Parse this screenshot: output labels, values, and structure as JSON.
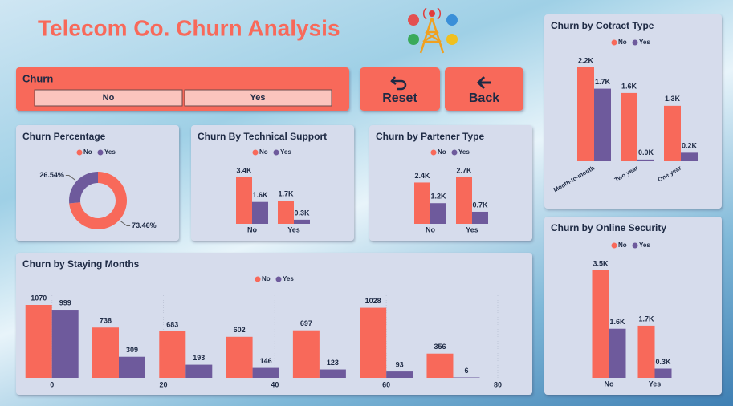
{
  "header": {
    "title": "Telecom Co. Churn Analysis"
  },
  "slicer": {
    "title": "Churn",
    "options": [
      "No",
      "Yes"
    ]
  },
  "buttons": [
    {
      "label": "Reset"
    },
    {
      "label": "Back"
    }
  ],
  "chart_data": [
    {
      "type": "pie",
      "title": "Churn Percentage",
      "categories": [
        "No",
        "Yes"
      ],
      "colors": [
        "#f8695a",
        "#6e5a9c"
      ],
      "values": [
        73.46,
        26.54
      ],
      "value_labels": [
        "73.46%",
        "26.54%"
      ]
    },
    {
      "type": "bar",
      "title": "Churn By Technical Support",
      "categories": [
        "No",
        "Yes"
      ],
      "series": [
        {
          "name": "No",
          "color": "#f8695a",
          "values": [
            3400,
            1700
          ],
          "value_labels": [
            "3.4K",
            "1.7K"
          ]
        },
        {
          "name": "Yes",
          "color": "#6e5a9c",
          "values": [
            1600,
            300
          ],
          "value_labels": [
            "1.6K",
            "0.3K"
          ]
        }
      ]
    },
    {
      "type": "bar",
      "title": "Churn by Partener Type",
      "categories": [
        "No",
        "Yes"
      ],
      "series": [
        {
          "name": "No",
          "color": "#f8695a",
          "values": [
            2400,
            2700
          ],
          "value_labels": [
            "2.4K",
            "2.7K"
          ]
        },
        {
          "name": "Yes",
          "color": "#6e5a9c",
          "values": [
            1200,
            700
          ],
          "value_labels": [
            "1.2K",
            "0.7K"
          ]
        }
      ]
    },
    {
      "type": "bar",
      "title": "Churn by Cotract Type",
      "categories": [
        "Month-to-month",
        "Two year",
        "One year"
      ],
      "series": [
        {
          "name": "No",
          "color": "#f8695a",
          "values": [
            2200,
            1600,
            1300
          ],
          "value_labels": [
            "2.2K",
            "1.6K",
            "1.3K"
          ]
        },
        {
          "name": "Yes",
          "color": "#6e5a9c",
          "values": [
            1700,
            40,
            200
          ],
          "value_labels": [
            "1.7K",
            "0.0K",
            "0.2K"
          ]
        }
      ]
    },
    {
      "type": "bar",
      "title": "Churn by Online Security",
      "categories": [
        "No",
        "Yes"
      ],
      "series": [
        {
          "name": "No",
          "color": "#f8695a",
          "values": [
            3500,
            1700
          ],
          "value_labels": [
            "3.5K",
            "1.7K"
          ]
        },
        {
          "name": "Yes",
          "color": "#6e5a9c",
          "values": [
            1600,
            300
          ],
          "value_labels": [
            "1.6K",
            "0.3K"
          ]
        }
      ]
    },
    {
      "type": "bar",
      "title": "Churn by Staying Months",
      "x": [
        0,
        12,
        24,
        36,
        48,
        60,
        72
      ],
      "xlim": [
        -5,
        80
      ],
      "xticks": [
        0,
        20,
        40,
        60,
        80
      ],
      "grid": true,
      "series": [
        {
          "name": "No",
          "color": "#f8695a",
          "values": [
            1070,
            738,
            683,
            602,
            697,
            1028,
            356
          ]
        },
        {
          "name": "Yes",
          "color": "#6e5a9c",
          "values": [
            999,
            309,
            193,
            146,
            123,
            93,
            6
          ]
        }
      ]
    }
  ]
}
